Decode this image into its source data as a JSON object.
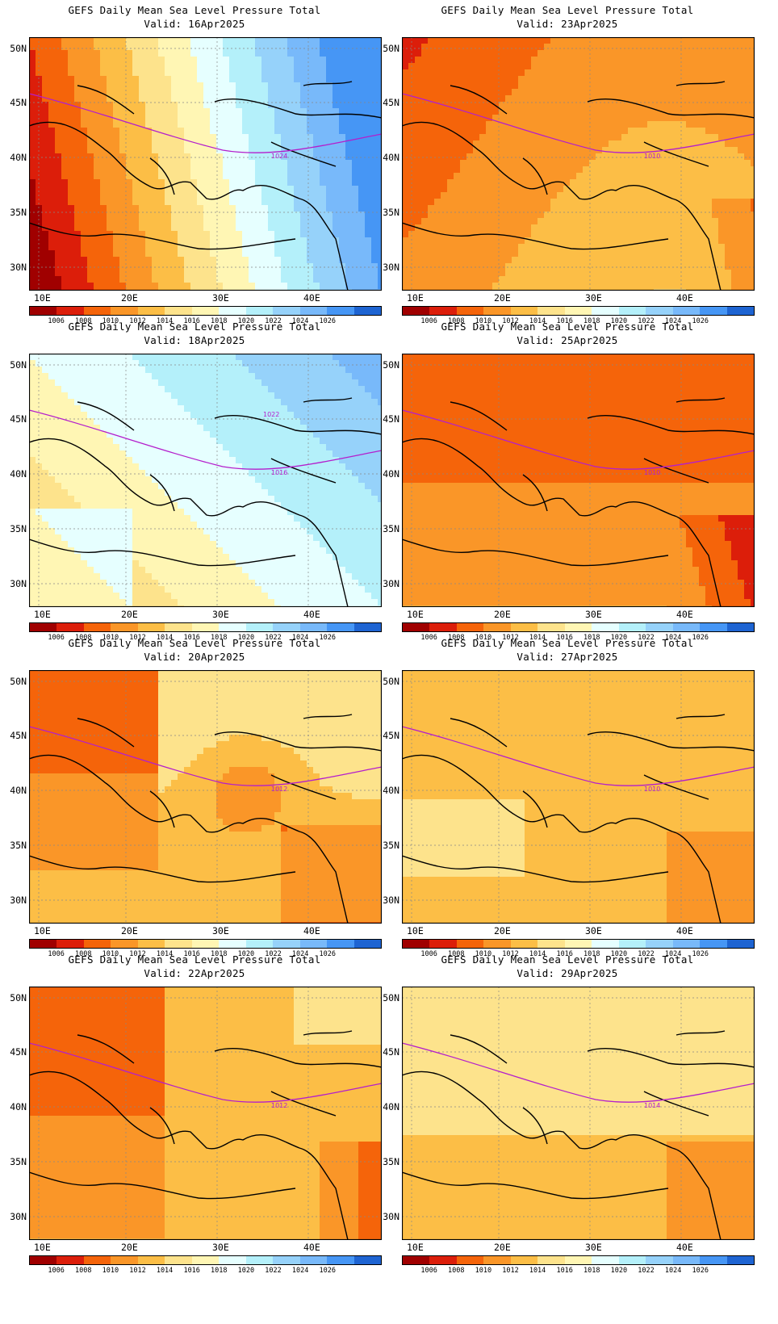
{
  "figure": {
    "title": "GEFS Daily Mean Sea Level Pressure Total",
    "lat_labels": [
      "50N",
      "45N",
      "40N",
      "35N",
      "30N"
    ],
    "lon_labels": [
      "10E",
      "20E",
      "30E",
      "40E"
    ],
    "colorbar_levels": [
      "1006",
      "1008",
      "1010",
      "1012",
      "1014",
      "1016",
      "1018",
      "1020",
      "1022",
      "1024",
      "1026"
    ],
    "colorbar_colors": [
      "#a00000",
      "#dc1e0a",
      "#f5640a",
      "#fa9628",
      "#fcbe46",
      "#fde38c",
      "#fff6b4",
      "#e6ffff",
      "#b4f0fa",
      "#96d2fa",
      "#78b9fa",
      "#4696f5",
      "#1e64d2"
    ],
    "contour_color": "#b41ecc"
  },
  "panels": [
    {
      "valid": "Valid: 16Apr2025",
      "label": "1024",
      "fill_pattern": "high-east"
    },
    {
      "valid": "Valid: 23Apr2025",
      "label": "1010",
      "fill_pattern": "weak-mixed"
    },
    {
      "valid": "Valid: 18Apr2025",
      "label": "1016",
      "label2": "1022",
      "fill_pattern": "high-northeast"
    },
    {
      "valid": "Valid: 25Apr2025",
      "label": "1010",
      "fill_pattern": "low-north"
    },
    {
      "valid": "Valid: 20Apr2025",
      "label": "1012",
      "fill_pattern": "mixed-low"
    },
    {
      "valid": "Valid: 27Apr2025",
      "label": "1010",
      "fill_pattern": "flat"
    },
    {
      "valid": "Valid: 22Apr2025",
      "label": "1012",
      "fill_pattern": "low-northwest"
    },
    {
      "valid": "Valid: 29Apr2025",
      "label": "1014",
      "fill_pattern": "flat-high"
    }
  ]
}
